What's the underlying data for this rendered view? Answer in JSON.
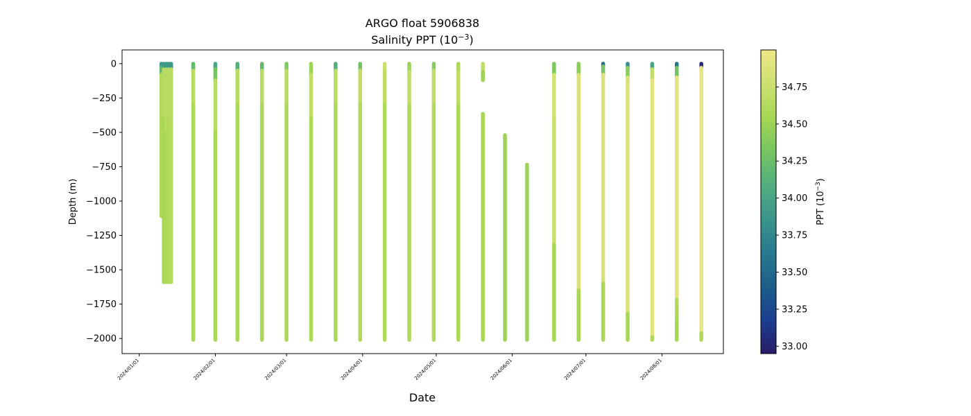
{
  "chart_data": {
    "type": "scatter",
    "title": "ARGO float 5906838",
    "subtitle": "Salinity PPT (10",
    "subtitle_exp": "−3",
    "subtitle_close": ")",
    "xlabel": "Date",
    "ylabel": "Depth (m)",
    "colorbar_label": "PPT (10",
    "colorbar_label_exp": "−3",
    "colorbar_label_close": ")",
    "grid": false,
    "colormap": [
      "#2a1c69",
      "#1b3f8f",
      "#1d5f8a",
      "#277a8e",
      "#3a958c",
      "#52ae7e",
      "#76c560",
      "#a6d754",
      "#cde072",
      "#eee786"
    ],
    "color_range": [
      32.95,
      35.0
    ],
    "colorbar_ticks": [
      {
        "value": 33.0,
        "label": "33.00"
      },
      {
        "value": 33.25,
        "label": "33.25"
      },
      {
        "value": 33.5,
        "label": "33.50"
      },
      {
        "value": 33.75,
        "label": "33.75"
      },
      {
        "value": 34.0,
        "label": "34.00"
      },
      {
        "value": 34.25,
        "label": "34.25"
      },
      {
        "value": 34.5,
        "label": "34.50"
      },
      {
        "value": 34.75,
        "label": "34.75"
      }
    ],
    "xlim": [
      "2023-12-25",
      "2024-08-26"
    ],
    "ylim": [
      -2110,
      100
    ],
    "x_ticks": [
      {
        "date": "2024-01-01",
        "label": "2024/01/01"
      },
      {
        "date": "2024-02-01",
        "label": "2024/02/01"
      },
      {
        "date": "2024-03-01",
        "label": "2024/03/01"
      },
      {
        "date": "2024-04-01",
        "label": "2024/04/01"
      },
      {
        "date": "2024-05-01",
        "label": "2024/05/01"
      },
      {
        "date": "2024-06-01",
        "label": "2024/06/01"
      },
      {
        "date": "2024-07-01",
        "label": "2024/07/01"
      },
      {
        "date": "2024-08-01",
        "label": "2024/08/01"
      }
    ],
    "y_ticks": [
      {
        "value": 0,
        "label": "0"
      },
      {
        "value": -250,
        "label": "−250"
      },
      {
        "value": -500,
        "label": "−500"
      },
      {
        "value": -750,
        "label": "−750"
      },
      {
        "value": -1000,
        "label": "−1000"
      },
      {
        "value": -1250,
        "label": "−1250"
      },
      {
        "value": -1500,
        "label": "−1500"
      },
      {
        "value": -1750,
        "label": "−1750"
      },
      {
        "value": -2000,
        "label": "−2000"
      }
    ],
    "profiles": [
      {
        "date": "2024-01-10",
        "segments": [
          {
            "from": 0,
            "to": -30,
            "salinity": 33.9
          },
          {
            "from": -30,
            "to": -80,
            "salinity": 34.2
          },
          {
            "from": -80,
            "to": -1110,
            "salinity": 34.6
          }
        ]
      },
      {
        "date": "2024-01-11",
        "segments": [
          {
            "from": 0,
            "to": -40,
            "salinity": 33.9
          },
          {
            "from": -40,
            "to": -400,
            "salinity": 34.65
          },
          {
            "from": -400,
            "to": -1590,
            "salinity": 34.55
          }
        ]
      },
      {
        "date": "2024-01-12",
        "segments": [
          {
            "from": 0,
            "to": -40,
            "salinity": 33.9
          },
          {
            "from": -40,
            "to": -500,
            "salinity": 34.65
          },
          {
            "from": -500,
            "to": -1590,
            "salinity": 34.58
          }
        ]
      },
      {
        "date": "2024-01-13",
        "segments": [
          {
            "from": 0,
            "to": -40,
            "salinity": 33.9
          },
          {
            "from": -40,
            "to": -400,
            "salinity": 34.65
          },
          {
            "from": -400,
            "to": -1590,
            "salinity": 34.6
          }
        ]
      },
      {
        "date": "2024-01-14",
        "segments": [
          {
            "from": 0,
            "to": -40,
            "salinity": 33.9
          },
          {
            "from": -40,
            "to": -500,
            "salinity": 34.65
          },
          {
            "from": -500,
            "to": -1590,
            "salinity": 34.62
          }
        ]
      },
      {
        "date": "2024-01-23",
        "segments": [
          {
            "from": 0,
            "to": -50,
            "salinity": 34.2
          },
          {
            "from": -50,
            "to": -300,
            "salinity": 34.65
          },
          {
            "from": -300,
            "to": -2010,
            "salinity": 34.58
          }
        ]
      },
      {
        "date": "2024-02-01",
        "segments": [
          {
            "from": 0,
            "to": -40,
            "salinity": 34.0
          },
          {
            "from": -40,
            "to": -120,
            "salinity": 34.3
          },
          {
            "from": -120,
            "to": -500,
            "salinity": 34.65
          },
          {
            "from": -500,
            "to": -2010,
            "salinity": 34.58
          }
        ]
      },
      {
        "date": "2024-02-10",
        "segments": [
          {
            "from": 0,
            "to": -50,
            "salinity": 34.1
          },
          {
            "from": -50,
            "to": -300,
            "salinity": 34.65
          },
          {
            "from": -300,
            "to": -2010,
            "salinity": 34.58
          }
        ]
      },
      {
        "date": "2024-02-20",
        "segments": [
          {
            "from": 0,
            "to": -50,
            "salinity": 34.2
          },
          {
            "from": -50,
            "to": -300,
            "salinity": 34.65
          },
          {
            "from": -300,
            "to": -2010,
            "salinity": 34.58
          }
        ]
      },
      {
        "date": "2024-03-01",
        "segments": [
          {
            "from": 0,
            "to": -50,
            "salinity": 34.35
          },
          {
            "from": -50,
            "to": -300,
            "salinity": 34.65
          },
          {
            "from": -300,
            "to": -2010,
            "salinity": 34.58
          }
        ]
      },
      {
        "date": "2024-03-11",
        "segments": [
          {
            "from": 0,
            "to": -80,
            "salinity": 34.5
          },
          {
            "from": -80,
            "to": -400,
            "salinity": 34.7
          },
          {
            "from": -400,
            "to": -2010,
            "salinity": 34.6
          }
        ]
      },
      {
        "date": "2024-03-21",
        "segments": [
          {
            "from": 0,
            "to": -50,
            "salinity": 34.1
          },
          {
            "from": -50,
            "to": -300,
            "salinity": 34.65
          },
          {
            "from": -300,
            "to": -2010,
            "salinity": 34.58
          }
        ]
      },
      {
        "date": "2024-03-31",
        "segments": [
          {
            "from": 0,
            "to": -50,
            "salinity": 34.3
          },
          {
            "from": -50,
            "to": -300,
            "salinity": 34.7
          },
          {
            "from": -300,
            "to": -2010,
            "salinity": 34.6
          }
        ]
      },
      {
        "date": "2024-04-10",
        "segments": [
          {
            "from": 0,
            "to": -60,
            "salinity": 34.75
          },
          {
            "from": -60,
            "to": -300,
            "salinity": 34.7
          },
          {
            "from": -300,
            "to": -2010,
            "salinity": 34.6
          }
        ]
      },
      {
        "date": "2024-04-20",
        "segments": [
          {
            "from": 0,
            "to": -60,
            "salinity": 34.5
          },
          {
            "from": -60,
            "to": -300,
            "salinity": 34.7
          },
          {
            "from": -300,
            "to": -2010,
            "salinity": 34.6
          }
        ]
      },
      {
        "date": "2024-04-30",
        "segments": [
          {
            "from": 0,
            "to": -50,
            "salinity": 34.4
          },
          {
            "from": -50,
            "to": -300,
            "salinity": 34.7
          },
          {
            "from": -300,
            "to": -2010,
            "salinity": 34.6
          }
        ]
      },
      {
        "date": "2024-05-10",
        "segments": [
          {
            "from": 0,
            "to": -60,
            "salinity": 34.6
          },
          {
            "from": -60,
            "to": -300,
            "salinity": 34.7
          },
          {
            "from": -300,
            "to": -2010,
            "salinity": 34.6
          }
        ]
      },
      {
        "date": "2024-05-20",
        "segments": [
          {
            "from": 0,
            "to": -60,
            "salinity": 34.7
          },
          {
            "from": -60,
            "to": -120,
            "salinity": 34.5
          }
        ]
      },
      {
        "date": "2024-05-20",
        "segments": [
          {
            "from": -365,
            "to": -2010,
            "salinity": 34.55
          }
        ]
      },
      {
        "date": "2024-05-29",
        "segments": [
          {
            "from": -520,
            "to": -2010,
            "salinity": 34.5
          }
        ]
      },
      {
        "date": "2024-06-07",
        "segments": [
          {
            "from": -735,
            "to": -2010,
            "salinity": 34.5
          }
        ]
      },
      {
        "date": "2024-06-18",
        "segments": [
          {
            "from": 0,
            "to": -80,
            "salinity": 34.35
          },
          {
            "from": -80,
            "to": -400,
            "salinity": 34.8
          },
          {
            "from": -400,
            "to": -1320,
            "salinity": 34.75
          },
          {
            "from": -1320,
            "to": -2010,
            "salinity": 34.55
          }
        ]
      },
      {
        "date": "2024-06-28",
        "segments": [
          {
            "from": 0,
            "to": -80,
            "salinity": 34.4
          },
          {
            "from": -80,
            "to": -400,
            "salinity": 34.85
          },
          {
            "from": -400,
            "to": -1650,
            "salinity": 34.85
          },
          {
            "from": -1650,
            "to": -2010,
            "salinity": 34.55
          }
        ]
      },
      {
        "date": "2024-07-08",
        "segments": [
          {
            "from": 0,
            "to": -20,
            "salinity": 33.5
          },
          {
            "from": -20,
            "to": -80,
            "salinity": 34.3
          },
          {
            "from": -80,
            "to": -1600,
            "salinity": 34.85
          },
          {
            "from": -1600,
            "to": -2010,
            "salinity": 34.55
          }
        ]
      },
      {
        "date": "2024-07-18",
        "segments": [
          {
            "from": 0,
            "to": -30,
            "salinity": 33.8
          },
          {
            "from": -30,
            "to": -100,
            "salinity": 34.4
          },
          {
            "from": -100,
            "to": -1820,
            "salinity": 34.85
          },
          {
            "from": -1820,
            "to": -2010,
            "salinity": 34.55
          }
        ]
      },
      {
        "date": "2024-07-28",
        "segments": [
          {
            "from": 0,
            "to": -40,
            "salinity": 34.0
          },
          {
            "from": -40,
            "to": -120,
            "salinity": 34.7
          },
          {
            "from": -120,
            "to": -1990,
            "salinity": 34.92
          },
          {
            "from": -1990,
            "to": -2010,
            "salinity": 34.6
          }
        ]
      },
      {
        "date": "2024-08-07",
        "segments": [
          {
            "from": 0,
            "to": -30,
            "salinity": 33.6
          },
          {
            "from": -30,
            "to": -100,
            "salinity": 34.3
          },
          {
            "from": -100,
            "to": -1720,
            "salinity": 34.92
          },
          {
            "from": -1720,
            "to": -1860,
            "salinity": 34.6
          },
          {
            "from": -1860,
            "to": -2010,
            "salinity": 34.55
          }
        ]
      },
      {
        "date": "2024-08-17",
        "segments": [
          {
            "from": 0,
            "to": -30,
            "salinity": 33.05
          },
          {
            "from": -30,
            "to": -1960,
            "salinity": 34.95
          },
          {
            "from": -1960,
            "to": -2010,
            "salinity": 34.6
          }
        ]
      }
    ]
  }
}
